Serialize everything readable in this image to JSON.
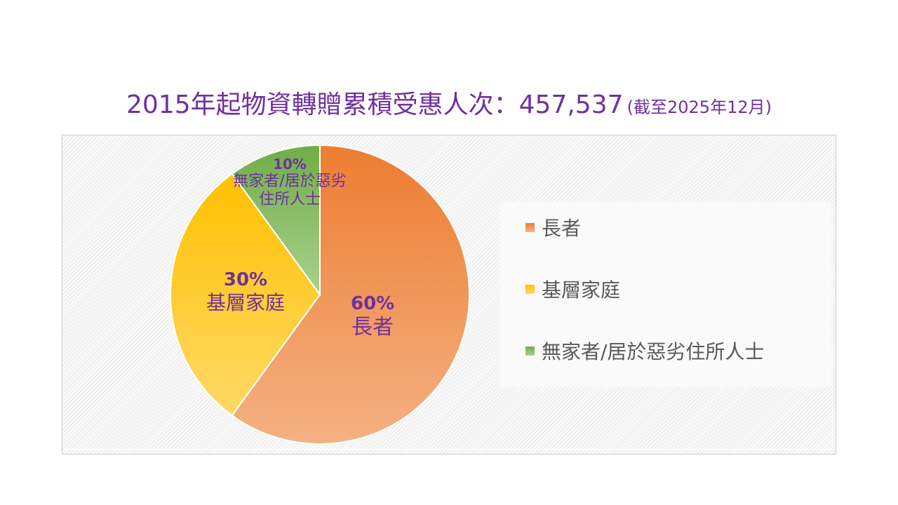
{
  "title": {
    "main": "2015年起物資轉贈累積受惠人次：457,537",
    "sub": "(截至2025年12月)"
  },
  "chart_data": {
    "type": "pie",
    "title": "2015年起物資轉贈累積受惠人次：457,537",
    "slices": [
      {
        "label": "長者",
        "value": 60,
        "pct_label": "60%",
        "color": "#ed7d31",
        "color_light": "#f4b183"
      },
      {
        "label": "基層家庭",
        "value": 30,
        "pct_label": "30%",
        "color": "#ffc000",
        "color_light": "#ffd966"
      },
      {
        "label": "無家者/居於惡劣住所人士",
        "value": 10,
        "pct_label": "10%",
        "color": "#70ad47",
        "color_light": "#a9d18e"
      }
    ],
    "legend": {
      "placement": "right",
      "items": [
        "長者",
        "基層家庭",
        "無家者/居於惡劣住所人士"
      ]
    },
    "data_label_lines": [
      [
        "60%",
        "長者"
      ],
      [
        "30%",
        "基層家庭"
      ],
      [
        "10%",
        "無家者/居於惡劣",
        "住所人士"
      ]
    ]
  }
}
